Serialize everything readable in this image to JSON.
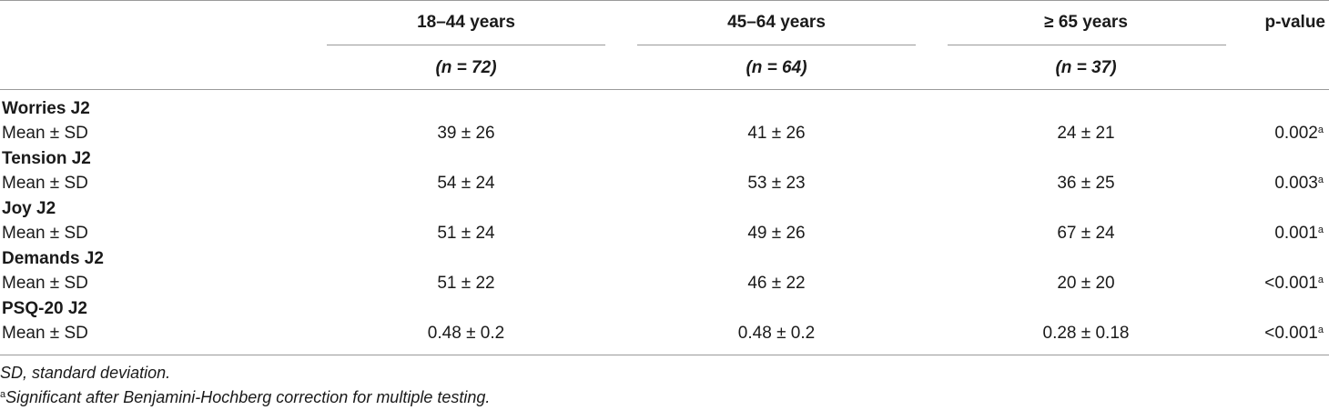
{
  "header": {
    "columns": [
      {
        "label": "18–44 years",
        "n": "(n = 72)"
      },
      {
        "label": "45–64 years",
        "n": "(n = 64)"
      },
      {
        "label": "≥ 65 years",
        "n": "(n = 37)"
      }
    ],
    "pvalue_label": "p-value"
  },
  "rows": [
    {
      "variable": "Worries J2",
      "stat": "Mean ± SD",
      "values": [
        "39 ± 26",
        "41 ± 26",
        "24 ± 21"
      ],
      "p": "0.002",
      "p_sup": "a"
    },
    {
      "variable": "Tension J2",
      "stat": "Mean ± SD",
      "values": [
        "54 ± 24",
        "53 ± 23",
        "36 ± 25"
      ],
      "p": "0.003",
      "p_sup": "a"
    },
    {
      "variable": "Joy J2",
      "stat": "Mean ± SD",
      "values": [
        "51 ± 24",
        "49 ± 26",
        "67 ± 24"
      ],
      "p": "0.001",
      "p_sup": "a"
    },
    {
      "variable": "Demands J2",
      "stat": "Mean ± SD",
      "values": [
        "51 ± 22",
        "46 ± 22",
        "20 ± 20"
      ],
      "p": "<0.001",
      "p_sup": "a"
    },
    {
      "variable": "PSQ-20 J2",
      "stat": "Mean ± SD",
      "values": [
        "0.48 ± 0.2",
        "0.48 ± 0.2",
        "0.28 ± 0.18"
      ],
      "p": "<0.001",
      "p_sup": "a"
    }
  ],
  "footnotes": {
    "sd": "SD, standard deviation.",
    "a_mark": "a",
    "a_text": "Significant after Benjamini-Hochberg correction for multiple testing."
  }
}
